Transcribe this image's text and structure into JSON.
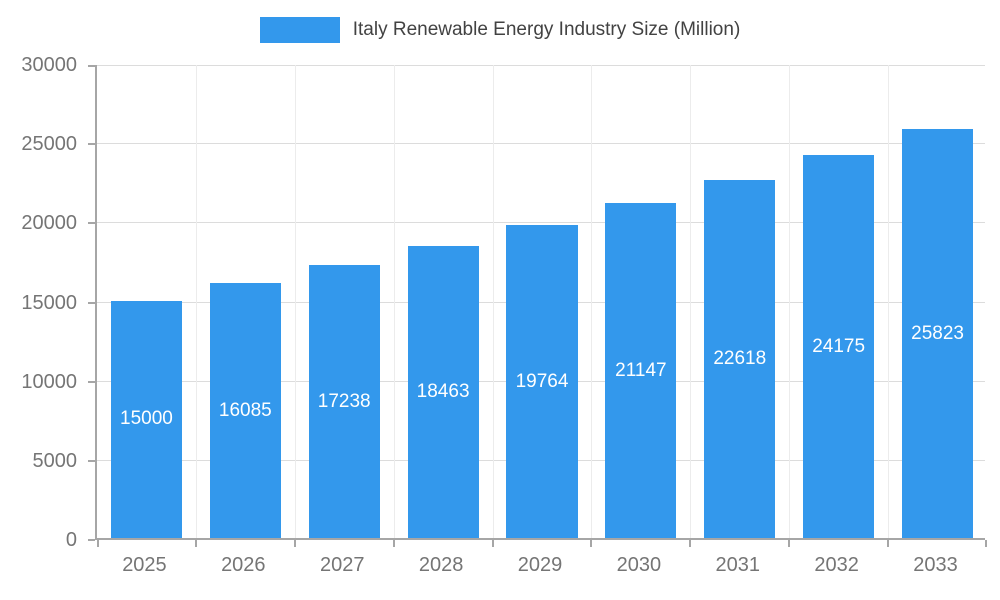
{
  "chart_data": {
    "type": "bar",
    "title": "Italy Renewable Energy Industry Size (Million)",
    "categories": [
      "2025",
      "2026",
      "2027",
      "2028",
      "2029",
      "2030",
      "2031",
      "2032",
      "2033"
    ],
    "values": [
      15000,
      16085,
      17238,
      18463,
      19764,
      21147,
      22618,
      24175,
      25823
    ],
    "xlabel": "",
    "ylabel": "",
    "ylim": [
      0,
      30000
    ],
    "yticks": [
      0,
      5000,
      10000,
      15000,
      20000,
      25000,
      30000
    ],
    "grid": true,
    "legend_position": "top",
    "bar_color": "#3398EC",
    "value_label_color": "#ffffff",
    "axis_text_color": "#757575"
  }
}
